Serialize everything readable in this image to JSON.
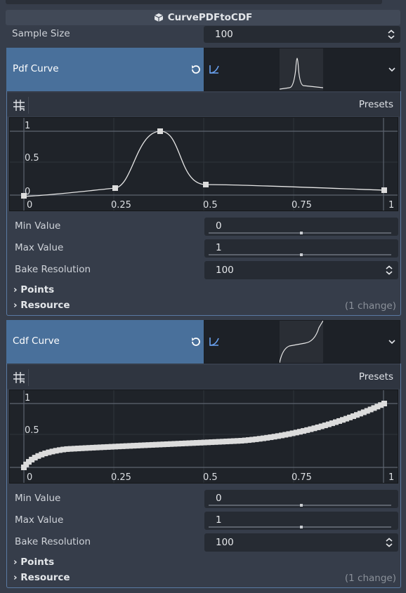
{
  "node": {
    "title": "CurvePDFtoCDF",
    "icon": "cube-icon"
  },
  "sample_size": {
    "label": "Sample Size",
    "value": "100"
  },
  "pdf": {
    "label": "Pdf Curve",
    "presets": "Presets",
    "ticks_x": [
      "0",
      "0.25",
      "0.5",
      "0.75",
      "1"
    ],
    "ticks_y": [
      "1",
      "0.5",
      "0"
    ],
    "points": [
      [
        0,
        0.0
      ],
      [
        0.25,
        0.13
      ],
      [
        0.375,
        1.0
      ],
      [
        0.5,
        0.15
      ],
      [
        1,
        0.07
      ]
    ],
    "min_value": {
      "label": "Min Value",
      "value": "0"
    },
    "max_value": {
      "label": "Max Value",
      "value": "1"
    },
    "bake_resolution": {
      "label": "Bake Resolution",
      "value": "100"
    },
    "points_group": "Points",
    "resource_group": "Resource",
    "changes": "(1 change)"
  },
  "cdf": {
    "label": "Cdf Curve",
    "presets": "Presets",
    "ticks_x": [
      "0",
      "0.25",
      "0.5",
      "0.75",
      "1"
    ],
    "ticks_y": [
      "1",
      "0.5",
      "0"
    ],
    "min_value": {
      "label": "Min Value",
      "value": "0"
    },
    "max_value": {
      "label": "Max Value",
      "value": "1"
    },
    "bake_resolution": {
      "label": "Bake Resolution",
      "value": "100"
    },
    "points_group": "Points",
    "resource_group": "Resource",
    "changes": "(1 change)"
  },
  "colors": {
    "accent": "#49709b",
    "border": "#5a7aa3",
    "curve": "#e0e0e0"
  }
}
